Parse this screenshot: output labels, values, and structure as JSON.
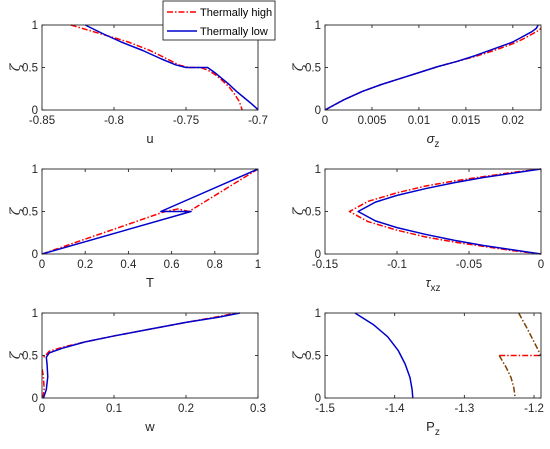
{
  "colors": {
    "thermally_high": "#ff0000",
    "thermally_low": "#0000cd",
    "axes": "#262626",
    "brown": "#7b3f00"
  },
  "legend": {
    "placement": "top-center",
    "entries": [
      "Thermally high",
      "Thermally low"
    ]
  },
  "chart_data": [
    {
      "id": "u",
      "type": "line",
      "xlabel": "u",
      "ylabel": "ζ",
      "xlim": [
        -0.85,
        -0.7
      ],
      "ylim": [
        0,
        1
      ],
      "xticks": [
        -0.85,
        -0.8,
        -0.75,
        -0.7
      ],
      "xticklabels": [
        "-0.85",
        "-0.8",
        "-0.75",
        "-0.7"
      ],
      "yticks": [
        0,
        0.5,
        1
      ],
      "yticklabels": [
        "0",
        "0.5",
        "1"
      ],
      "series": [
        {
          "name": "Thermally high",
          "style": "dashdot",
          "color": "#ff0000",
          "x": [
            -0.83,
            -0.81,
            -0.79,
            -0.775,
            -0.763,
            -0.755,
            -0.748,
            -0.74,
            -0.735,
            -0.73,
            -0.725,
            -0.72,
            -0.716,
            -0.713,
            -0.712,
            -0.711
          ],
          "y": [
            1,
            0.9,
            0.8,
            0.7,
            0.6,
            0.53,
            0.5,
            0.5,
            0.47,
            0.42,
            0.35,
            0.27,
            0.18,
            0.1,
            0.05,
            0
          ]
        },
        {
          "name": "Thermally low",
          "style": "solid",
          "color": "#0000cd",
          "x": [
            -0.82,
            -0.808,
            -0.795,
            -0.78,
            -0.767,
            -0.757,
            -0.75,
            -0.74,
            -0.735,
            -0.73,
            -0.725,
            -0.72,
            -0.715,
            -0.71,
            -0.705,
            -0.701,
            -0.7
          ],
          "y": [
            1,
            0.9,
            0.8,
            0.7,
            0.6,
            0.53,
            0.5,
            0.5,
            0.5,
            0.44,
            0.37,
            0.3,
            0.22,
            0.15,
            0.08,
            0.02,
            0
          ]
        }
      ]
    },
    {
      "id": "sigma_z",
      "type": "line",
      "xlabel": "σ_z",
      "ylabel": "ζ",
      "xlim": [
        0,
        0.023
      ],
      "ylim": [
        0,
        1
      ],
      "xticks": [
        0,
        0.005,
        0.01,
        0.015,
        0.02
      ],
      "xticklabels": [
        "0",
        "0.005",
        "0.01",
        "0.015",
        "0.02"
      ],
      "yticks": [
        0,
        0.5,
        1
      ],
      "yticklabels": [
        "0",
        "0.5",
        "1"
      ],
      "series": [
        {
          "name": "Thermally high",
          "style": "dashdot",
          "color": "#ff0000",
          "x": [
            0,
            0.001,
            0.002,
            0.004,
            0.006,
            0.008,
            0.01,
            0.012,
            0.014,
            0.016,
            0.018,
            0.02,
            0.021,
            0.022,
            0.0228,
            0.0233
          ],
          "y": [
            0,
            0.06,
            0.12,
            0.22,
            0.3,
            0.37,
            0.44,
            0.51,
            0.57,
            0.63,
            0.7,
            0.78,
            0.83,
            0.89,
            0.94,
            1
          ]
        },
        {
          "name": "Thermally low",
          "style": "solid",
          "color": "#0000cd",
          "x": [
            0,
            0.001,
            0.002,
            0.004,
            0.006,
            0.008,
            0.01,
            0.012,
            0.014,
            0.016,
            0.018,
            0.02,
            0.021,
            0.022,
            0.0225,
            0.0227
          ],
          "y": [
            0,
            0.06,
            0.12,
            0.22,
            0.3,
            0.37,
            0.44,
            0.51,
            0.57,
            0.64,
            0.72,
            0.8,
            0.86,
            0.92,
            0.96,
            1
          ]
        }
      ]
    },
    {
      "id": "T",
      "type": "line",
      "xlabel": "T",
      "ylabel": "ζ",
      "xlim": [
        0,
        1
      ],
      "ylim": [
        0,
        1
      ],
      "xticks": [
        0,
        0.2,
        0.4,
        0.6,
        0.8,
        1
      ],
      "xticklabels": [
        "0",
        "0.2",
        "0.4",
        "0.6",
        "0.8",
        "1"
      ],
      "yticks": [
        0,
        0.5,
        1
      ],
      "yticklabels": [
        "0",
        "0.5",
        "1"
      ],
      "series": [
        {
          "name": "Thermally high",
          "style": "dashdot",
          "color": "#ff0000",
          "x": [
            0,
            0.57,
            0.63,
            0.68,
            1
          ],
          "y": [
            0,
            0.5,
            0.53,
            0.5,
            1
          ]
        },
        {
          "name": "Thermally low",
          "style": "solid",
          "color": "#0000cd",
          "x": [
            0,
            0.69,
            0.55,
            1
          ],
          "y": [
            0,
            0.5,
            0.5,
            1
          ]
        }
      ]
    },
    {
      "id": "tau_xz",
      "type": "line",
      "xlabel": "τ_xz",
      "ylabel": "ζ",
      "xlim": [
        -0.15,
        0
      ],
      "ylim": [
        0,
        1
      ],
      "xticks": [
        -0.15,
        -0.1,
        -0.05,
        0
      ],
      "xticklabels": [
        "-0.15",
        "-0.1",
        "-0.05",
        "0"
      ],
      "yticks": [
        0,
        0.5,
        1
      ],
      "yticklabels": [
        "0",
        "0.5",
        "1"
      ],
      "series": [
        {
          "name": "Thermally high",
          "style": "dashdot",
          "color": "#ff0000",
          "x": [
            0,
            -0.02,
            -0.04,
            -0.06,
            -0.08,
            -0.1,
            -0.12,
            -0.133,
            -0.12,
            -0.1,
            -0.08,
            -0.06,
            -0.04,
            -0.02,
            0
          ],
          "y": [
            0,
            0.04,
            0.09,
            0.14,
            0.2,
            0.28,
            0.38,
            0.5,
            0.62,
            0.72,
            0.8,
            0.86,
            0.91,
            0.96,
            1
          ]
        },
        {
          "name": "Thermally low",
          "style": "solid",
          "color": "#0000cd",
          "x": [
            0,
            -0.02,
            -0.04,
            -0.06,
            -0.08,
            -0.1,
            -0.115,
            -0.127,
            -0.115,
            -0.1,
            -0.08,
            -0.06,
            -0.04,
            -0.02,
            0
          ],
          "y": [
            0,
            0.05,
            0.1,
            0.16,
            0.23,
            0.31,
            0.39,
            0.5,
            0.61,
            0.69,
            0.77,
            0.84,
            0.9,
            0.95,
            1
          ]
        }
      ]
    },
    {
      "id": "w",
      "type": "line",
      "xlabel": "w",
      "ylabel": "ζ",
      "xlim": [
        0,
        0.3
      ],
      "ylim": [
        0,
        1
      ],
      "xticks": [
        0,
        0.1,
        0.2,
        0.3
      ],
      "xticklabels": [
        "0",
        "0.1",
        "0.2",
        "0.3"
      ],
      "yticks": [
        0,
        0.5,
        1
      ],
      "yticklabels": [
        "0",
        "0.5",
        "1"
      ],
      "series": [
        {
          "name": "Thermally high",
          "style": "dashdot",
          "color": "#ff0000",
          "x": [
            0.001,
            0.003,
            0.002,
            0.0,
            -0.002,
            0.005,
            0.01,
            0.03,
            0.06,
            0.1,
            0.15,
            0.2,
            0.24,
            0.27
          ],
          "y": [
            0,
            0.1,
            0.25,
            0.35,
            0.45,
            0.5,
            0.55,
            0.6,
            0.66,
            0.73,
            0.81,
            0.89,
            0.95,
            1
          ]
        },
        {
          "name": "Thermally low",
          "style": "solid",
          "color": "#0000cd",
          "x": [
            0.002,
            0.006,
            0.008,
            0.007,
            0.006,
            0.01,
            0.03,
            0.06,
            0.1,
            0.15,
            0.2,
            0.245,
            0.275
          ],
          "y": [
            0,
            0.1,
            0.25,
            0.4,
            0.48,
            0.53,
            0.59,
            0.66,
            0.73,
            0.81,
            0.89,
            0.95,
            1
          ]
        }
      ]
    },
    {
      "id": "P_z",
      "type": "line",
      "xlabel": "P_z",
      "ylabel": "ζ",
      "xlim": [
        -1.5,
        -1.19
      ],
      "ylim": [
        0,
        1
      ],
      "xticks": [
        -1.5,
        -1.4,
        -1.3,
        -1.2
      ],
      "xticklabels": [
        "-1.5",
        "-1.4",
        "-1.3",
        "-1.2"
      ],
      "yticks": [
        0,
        0.5,
        1
      ],
      "yticklabels": [
        "0",
        "0.5",
        "1"
      ],
      "series": [
        {
          "name": "Thermally low",
          "style": "solid",
          "color": "#0000cd",
          "x": [
            -1.457,
            -1.43,
            -1.41,
            -1.395,
            -1.385,
            -1.378,
            -1.375,
            -1.374
          ],
          "y": [
            1,
            0.86,
            0.72,
            0.56,
            0.4,
            0.24,
            0.1,
            0
          ]
        },
        {
          "name": "Thermally high",
          "style": "dashdot",
          "color": "#ff0000",
          "x": [
            -1.25,
            -1.19
          ],
          "y": [
            0.5,
            0.5
          ]
        },
        {
          "name": "Thermally high",
          "style": "dashdot",
          "color": "#7b3f00",
          "x": [
            -1.222,
            -1.21,
            -1.2,
            -1.19
          ],
          "y": [
            1,
            0.82,
            0.66,
            0.5
          ]
        },
        {
          "name": "Thermally high",
          "style": "dashdot",
          "color": "#7b3f00",
          "x": [
            -1.25,
            -1.24,
            -1.233,
            -1.229,
            -1.227
          ],
          "y": [
            0.5,
            0.36,
            0.24,
            0.12,
            0
          ]
        }
      ]
    }
  ]
}
